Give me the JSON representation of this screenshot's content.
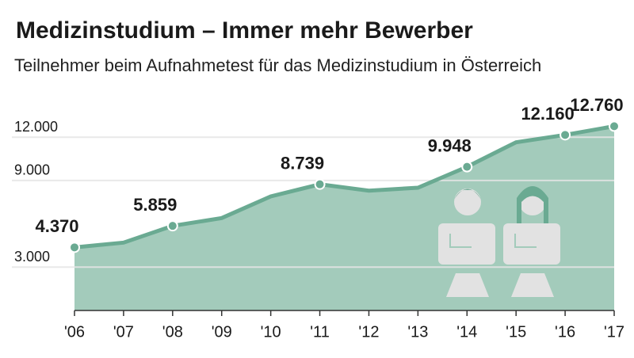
{
  "chart_data": {
    "type": "area",
    "title": "Medizinstudium – Immer mehr Bewerber",
    "subtitle": "Teilnehmer beim Aufnahmetest für das Medizinstudium in Österreich",
    "categories": [
      "'06",
      "'07",
      "'08",
      "'09",
      "'10",
      "'11",
      "'12",
      "'13",
      "'14",
      "'15",
      "'16",
      "'17"
    ],
    "values": [
      4370,
      4700,
      5859,
      6400,
      7900,
      8739,
      8300,
      8500,
      9948,
      11650,
      12160,
      12760
    ],
    "value_labels": [
      "4.370",
      null,
      "5.859",
      null,
      null,
      "8.739",
      null,
      null,
      "9.948",
      null,
      "12.160",
      "12.760"
    ],
    "color": "#6aaa92",
    "fill": "#a3cbbb",
    "ylim": [
      0,
      13000
    ],
    "yticks": [
      {
        "value": 3000,
        "label": "3.000"
      },
      {
        "value": 9000,
        "label": "9.000"
      },
      {
        "value": 12000,
        "label": "12.000"
      }
    ],
    "grid": true
  }
}
